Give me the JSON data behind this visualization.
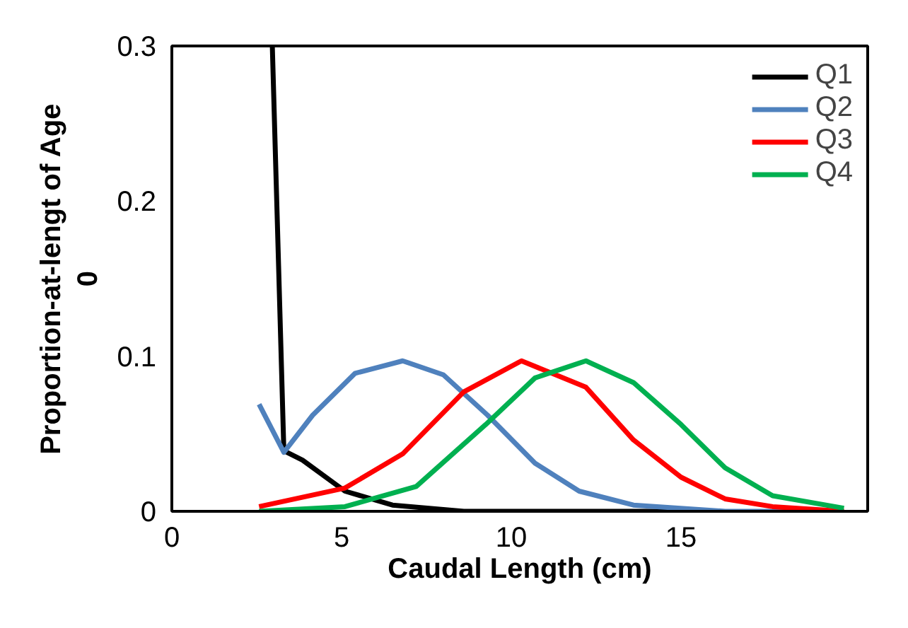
{
  "chart_data": {
    "type": "line",
    "xlabel": "Caudal Length (cm)",
    "ylabel": "Proportion-at-lengt of Age\n0",
    "xlim": [
      0,
      20.5
    ],
    "ylim": [
      0,
      0.3
    ],
    "xticks": [
      0,
      5,
      10,
      15
    ],
    "yticks": [
      0,
      0.1,
      0.2,
      0.3
    ],
    "grid": false,
    "legend": "top right",
    "marker": "none",
    "line_style": "solid",
    "series": [
      {
        "name": "Q1",
        "color": "#000000",
        "x": [
          2.96,
          3.3,
          3.85,
          5.1,
          6.5,
          8.6,
          12,
          15.5
        ],
        "values": [
          0.3,
          0.039,
          0.033,
          0.013,
          0.004,
          0.0,
          0.0,
          0.0
        ]
      },
      {
        "name": "Q2",
        "color": "#4f81bd",
        "x": [
          2.57,
          3.3,
          4.15,
          5.4,
          6.8,
          8.0,
          9.3,
          10.7,
          12.0,
          13.6,
          16.3,
          19.8
        ],
        "values": [
          0.069,
          0.038,
          0.062,
          0.089,
          0.097,
          0.088,
          0.062,
          0.031,
          0.013,
          0.004,
          0.0,
          0.0
        ]
      },
      {
        "name": "Q3",
        "color": "#ff0000",
        "x": [
          2.57,
          5.1,
          6.8,
          8.6,
          10.3,
          12.2,
          13.6,
          15.0,
          16.3,
          17.7,
          19.8
        ],
        "values": [
          0.003,
          0.015,
          0.037,
          0.077,
          0.097,
          0.08,
          0.046,
          0.022,
          0.008,
          0.003,
          0.0
        ]
      },
      {
        "name": "Q4",
        "color": "#00b050",
        "x": [
          2.57,
          5.1,
          7.2,
          9.25,
          10.7,
          12.2,
          13.6,
          15.0,
          16.3,
          17.7,
          19.8
        ],
        "values": [
          0.0,
          0.003,
          0.016,
          0.056,
          0.086,
          0.097,
          0.083,
          0.056,
          0.028,
          0.01,
          0.002
        ]
      }
    ]
  }
}
